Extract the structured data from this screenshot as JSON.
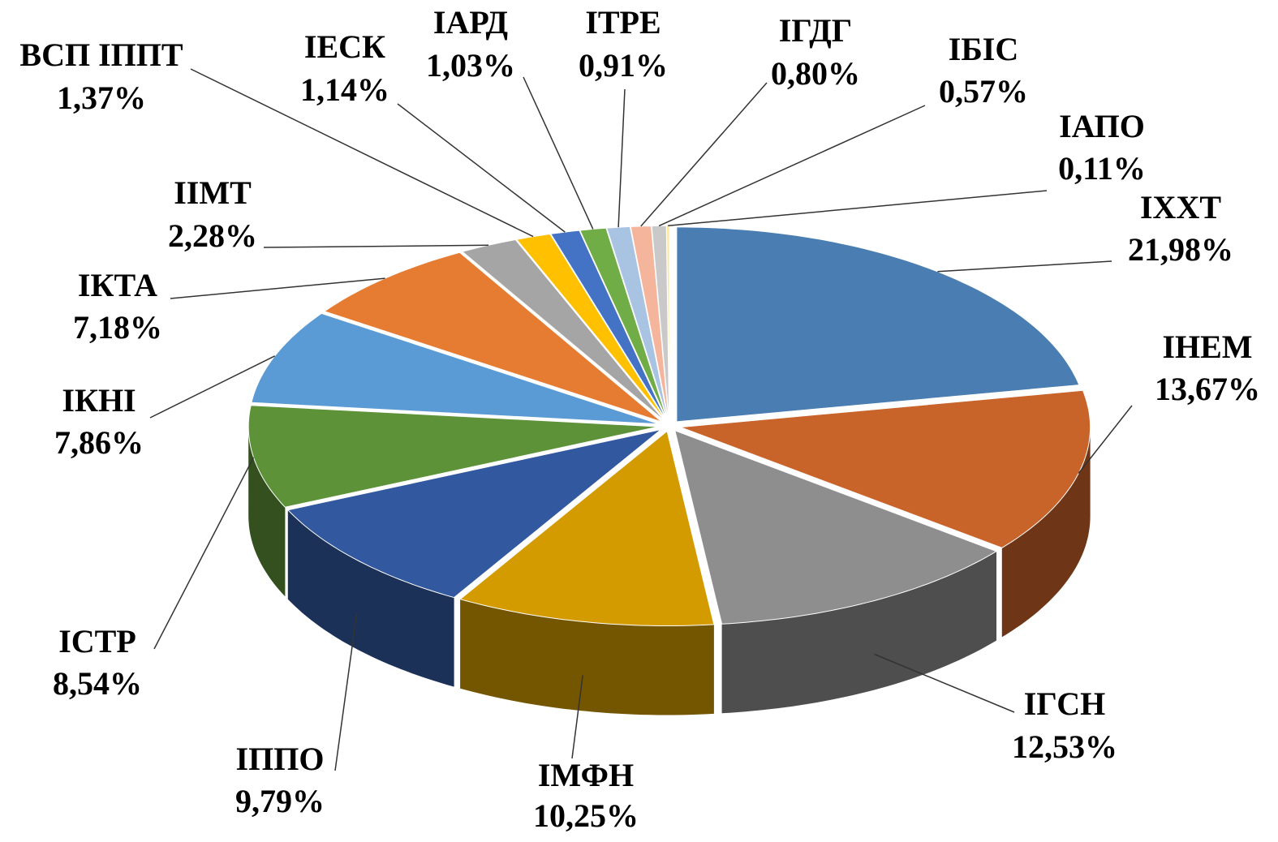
{
  "chart_data": {
    "type": "pie",
    "categories": [
      "ІХХТ",
      "ІНЕМ",
      "ІГСН",
      "ІМФН",
      "ІППО",
      "ІСТР",
      "ІКНІ",
      "ІКТА",
      "ІІМТ",
      "ВСП ІППТ",
      "ІЕСК",
      "ІАРД",
      "ІТРЕ",
      "ІГДГ",
      "ІБІС",
      "ІАПО"
    ],
    "values": [
      21.98,
      13.67,
      12.53,
      10.25,
      9.79,
      8.54,
      7.86,
      7.18,
      2.28,
      1.37,
      1.14,
      1.03,
      0.91,
      0.8,
      0.57,
      0.11
    ],
    "value_labels": [
      "21,98%",
      "13,67%",
      "12,53%",
      "10,25%",
      "9,79%",
      "8,54%",
      "7,86%",
      "7,18%",
      "2,28%",
      "1,37%",
      "1,14%",
      "1,03%",
      "0,91%",
      "0,80%",
      "0,57%",
      "0,11%"
    ],
    "colors": [
      "#4a7eb2",
      "#c8632a",
      "#8e8e8e",
      "#d39b00",
      "#3259a0",
      "#5e9239",
      "#5b9bd5",
      "#e67b32",
      "#a5a5a5",
      "#ffc000",
      "#4472c4",
      "#70ad47",
      "#a9c3e3",
      "#f4b59c",
      "#c9c9c9",
      "#ffe699"
    ]
  }
}
